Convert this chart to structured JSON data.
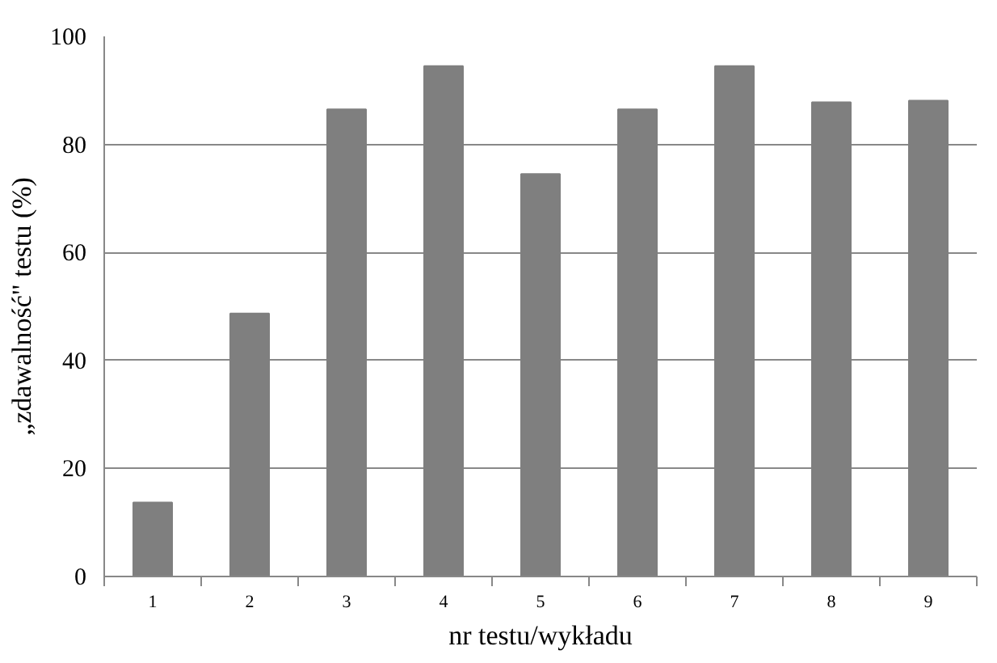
{
  "chart_data": {
    "type": "bar",
    "xlabel": "nr testu/wykładu",
    "ylabel": "„zdawalność\" testu (%)",
    "categories": [
      "1",
      "2",
      "3",
      "4",
      "5",
      "6",
      "7",
      "8",
      "9"
    ],
    "values": [
      13.7,
      48.7,
      86.5,
      94.5,
      74.5,
      86.5,
      94.5,
      87.8,
      88.1
    ],
    "color": "#7f7f7f",
    "ylim": [
      0,
      100
    ],
    "yticks": [
      0,
      20,
      40,
      60,
      80,
      100
    ],
    "grid": "y"
  }
}
